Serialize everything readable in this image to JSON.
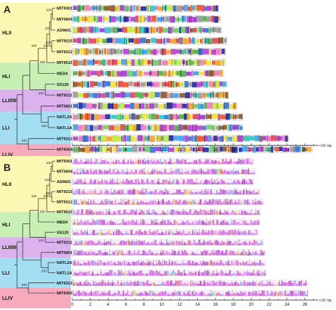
{
  "panels": [
    {
      "letter": "A"
    },
    {
      "letter": "B"
    }
  ],
  "clades": [
    {
      "id": "hlii",
      "label": "HLII",
      "color": "#fdf7b4",
      "rows": [
        0,
        6
      ]
    },
    {
      "id": "hli",
      "label": "HLI",
      "color": "#c8efb4",
      "rows": [
        6,
        8
      ]
    },
    {
      "id": "llii",
      "label": "LLII/III",
      "color": "#dcb2ee",
      "rows": [
        8,
        10
      ]
    },
    {
      "id": "lli",
      "label": "LLI",
      "color": "#a4def2",
      "rows": [
        10,
        13
      ]
    },
    {
      "id": "lliv",
      "label": "LLIV",
      "color": "#f6aabb",
      "rows": [
        13,
        15
      ]
    }
  ],
  "strains": [
    {
      "name": "MIT9301",
      "length_a": 16.4,
      "length_b": 20.3
    },
    {
      "name": "MIT0604",
      "length_a": 16.6,
      "length_b": 20.5
    },
    {
      "name": "AS9601",
      "length_a": 16.7,
      "length_b": 20.3
    },
    {
      "name": "MIT9215",
      "length_a": 17.3,
      "length_b": 21.0
    },
    {
      "name": "MIT9312",
      "length_a": 17.1,
      "length_b": 21.4
    },
    {
      "name": "MIT9515",
      "length_a": 17.1,
      "length_b": 21.1
    },
    {
      "name": "MED4",
      "length_a": 16.9,
      "length_b": 21.0
    },
    {
      "name": "SS120",
      "length_a": 17.3,
      "length_b": 20.8
    },
    {
      "name": "MIT9211",
      "length_a": 17.5,
      "length_b": 21.4
    },
    {
      "name": "MIT0801",
      "length_a": 18.4,
      "length_b": 21.6
    },
    {
      "name": "NATL2A",
      "length_a": 19.1,
      "length_b": 21.6
    },
    {
      "name": "NATL1A",
      "length_a": 19.1,
      "length_b": 21.7
    },
    {
      "name": "MIT9313",
      "length_a": 24.2,
      "length_b": 26.3
    },
    {
      "name": "MIT9303",
      "length_a": 26.8,
      "length_b": 26.4
    }
  ],
  "bootstrap": {
    "a": [
      "100",
      "100",
      "100",
      "100",
      "100",
      "100",
      "100",
      "100",
      "100"
    ],
    "b": [
      "100",
      "100",
      "100",
      "100",
      "100",
      "100",
      "100",
      "100",
      "100"
    ]
  },
  "axis": {
    "ticks": [
      0,
      2,
      4,
      6,
      8,
      10,
      12,
      14,
      16,
      18,
      20,
      22,
      24,
      26
    ],
    "max": 27.5,
    "unit": "×10⁵ bp"
  },
  "colors": {
    "panel_a_blocks": [
      "#e8425a",
      "#4fb34a",
      "#3b6fd8",
      "#f2a12b",
      "#b93fd0",
      "#2ec7c9",
      "#f1e23a",
      "#8a5a2b",
      "#f07ab8",
      "#6ad06a",
      "#1f2aa8",
      "#c2e83c",
      "#ee5524",
      "#9a9a9a",
      "#3fa0f0",
      "#a43ad8"
    ],
    "panel_b_blocks": [
      "#d86ae0",
      "#c85ad8",
      "#e08ae8",
      "#b84ad0",
      "#d070e8",
      "#e06a8a",
      "#7ab8e8",
      "#e8d04a"
    ]
  }
}
